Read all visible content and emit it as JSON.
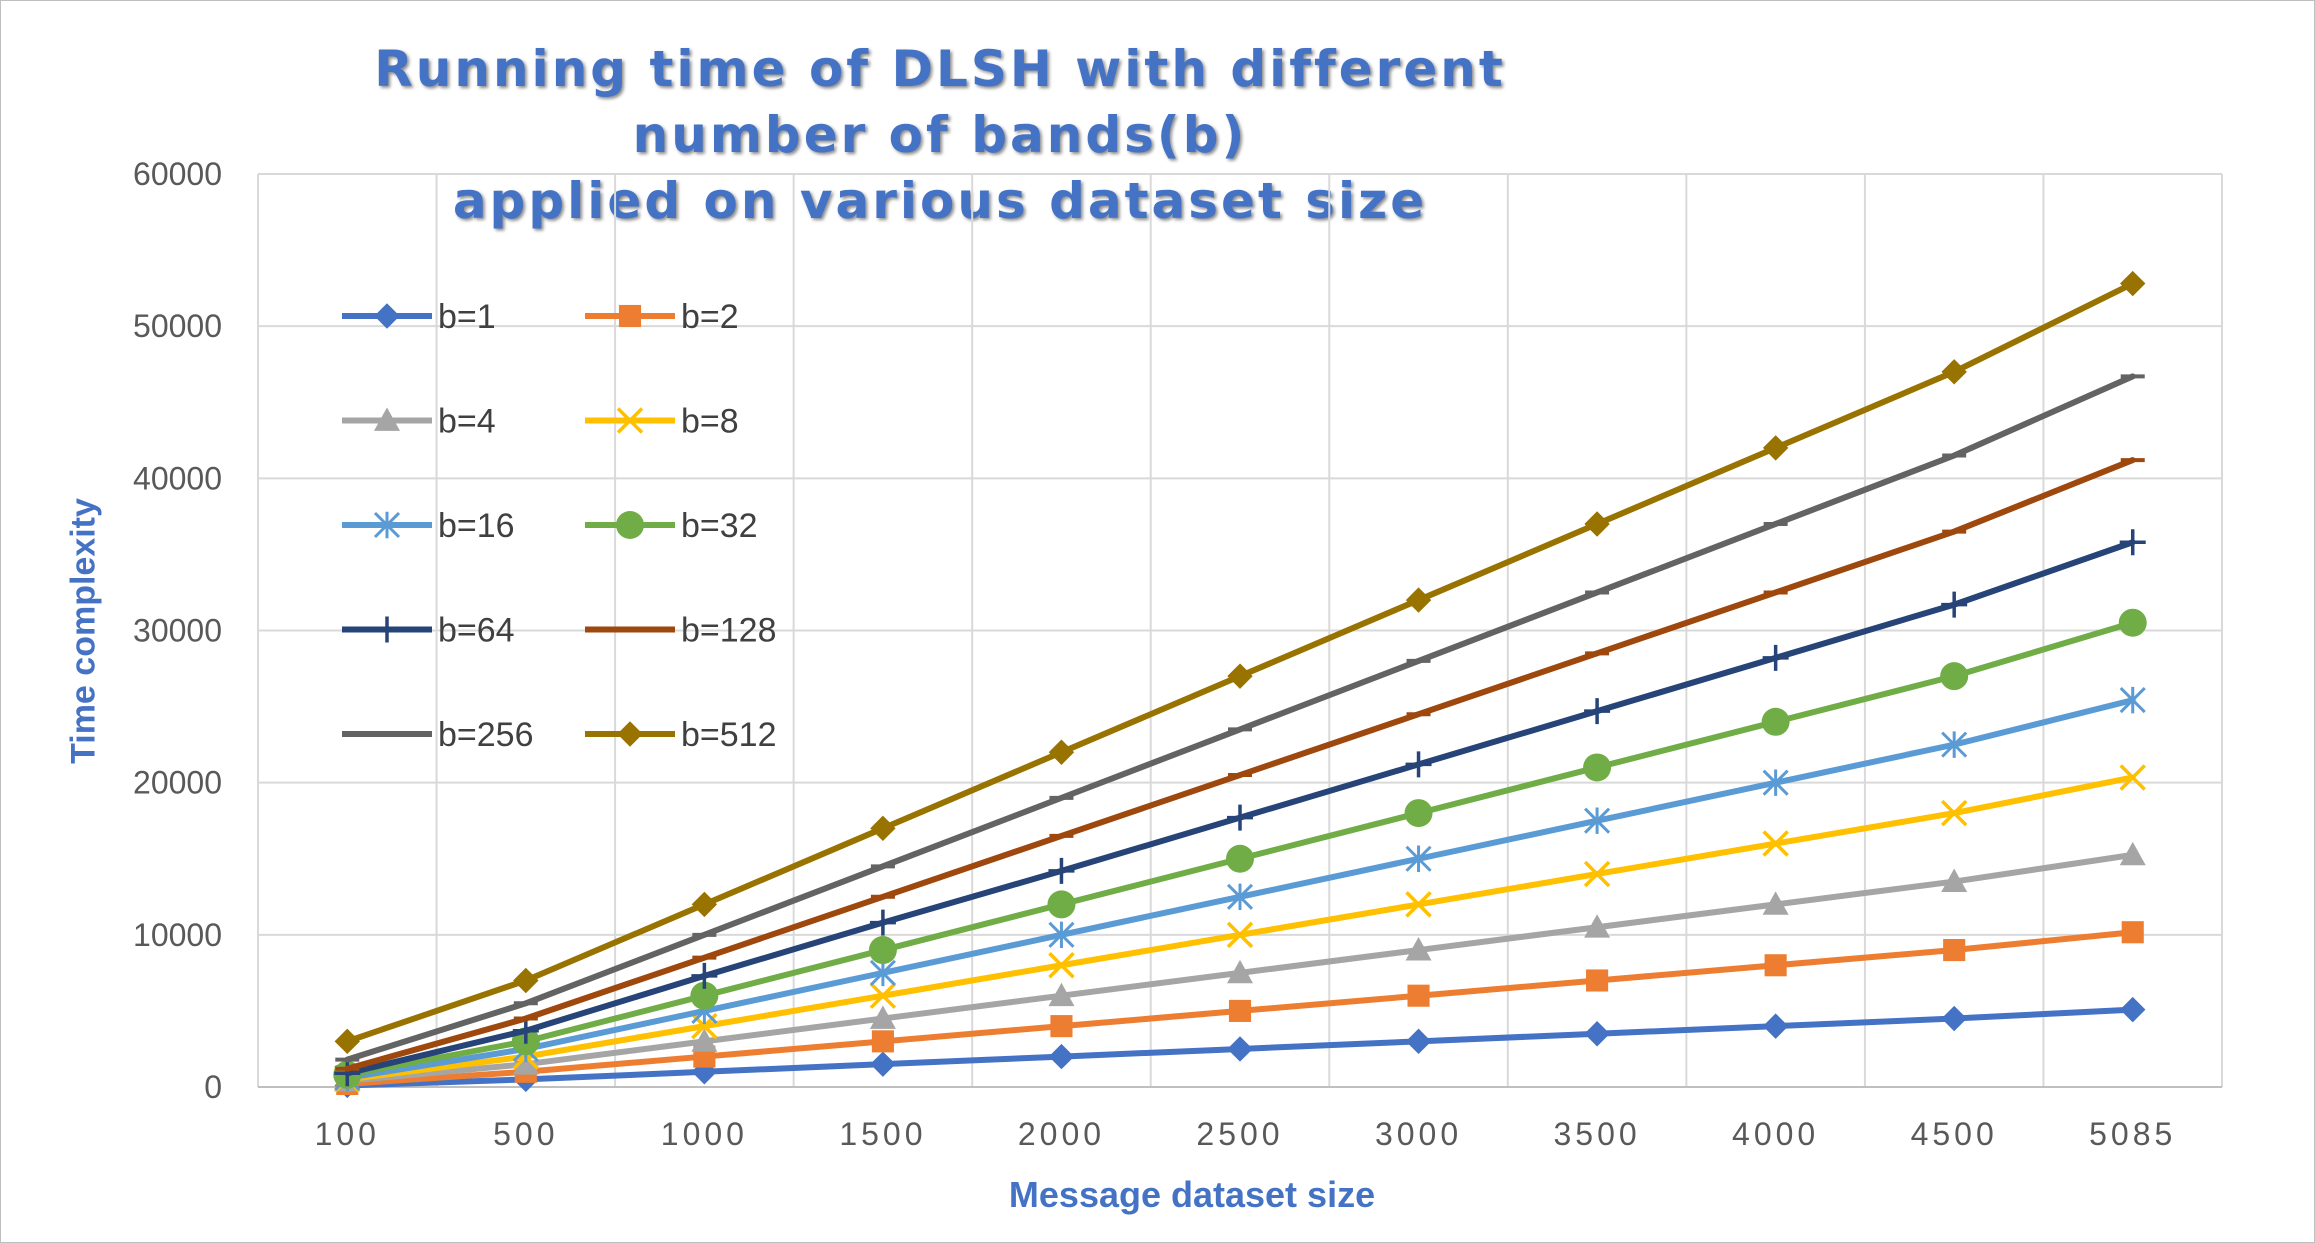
{
  "chart_data": {
    "type": "line",
    "title": "Running time of DLSH with different number of bands(b)\napplied on various  dataset size",
    "xlabel": "Message dataset size",
    "ylabel": "Time complexity",
    "categories": [
      "100",
      "500",
      "1000",
      "1500",
      "2000",
      "2500",
      "3000",
      "3500",
      "4000",
      "4500",
      "5085"
    ],
    "ylim": [
      0,
      60000
    ],
    "yticks": [
      "0",
      "10000",
      "20000",
      "30000",
      "40000",
      "50000",
      "60000"
    ],
    "grid": true,
    "legend_position": "upper-left inside plot",
    "series": [
      {
        "name": "b=1",
        "color": "#4472c4",
        "marker": "diamond",
        "values": [
          100,
          500,
          1000,
          1500,
          2000,
          2500,
          3000,
          3500,
          4000,
          4500,
          5085
        ]
      },
      {
        "name": "b=2",
        "color": "#ed7d31",
        "marker": "square",
        "values": [
          200,
          1000,
          2000,
          3000,
          4000,
          5000,
          6000,
          7000,
          8000,
          9000,
          10170
        ]
      },
      {
        "name": "b=4",
        "color": "#a5a5a5",
        "marker": "triangle",
        "values": [
          400,
          1500,
          3000,
          4500,
          6000,
          7500,
          9000,
          10500,
          12000,
          13500,
          15255
        ]
      },
      {
        "name": "b=8",
        "color": "#ffc000",
        "marker": "x",
        "values": [
          500,
          2000,
          4000,
          6000,
          8000,
          10000,
          12000,
          14000,
          16000,
          18000,
          20340
        ]
      },
      {
        "name": "b=16",
        "color": "#5b9bd5",
        "marker": "star",
        "values": [
          600,
          2500,
          5000,
          7500,
          10000,
          12500,
          15000,
          17500,
          20000,
          22500,
          25425
        ]
      },
      {
        "name": "b=32",
        "color": "#70ad47",
        "marker": "circle",
        "values": [
          800,
          3000,
          6000,
          9000,
          12000,
          15000,
          18000,
          21000,
          24000,
          27000,
          30510
        ]
      },
      {
        "name": "b=64",
        "color": "#264478",
        "marker": "plus",
        "values": [
          900,
          3700,
          7300,
          10800,
          14200,
          17700,
          21200,
          24700,
          28200,
          31700,
          35800
        ]
      },
      {
        "name": "b=128",
        "color": "#9e480e",
        "marker": "dash",
        "values": [
          1200,
          4500,
          8500,
          12500,
          16500,
          20500,
          24500,
          28500,
          32500,
          36500,
          41200
        ]
      },
      {
        "name": "b=256",
        "color": "#636363",
        "marker": "dash",
        "values": [
          1800,
          5500,
          10000,
          14500,
          19000,
          23500,
          28000,
          32500,
          37000,
          41500,
          46700
        ]
      },
      {
        "name": "b=512",
        "color": "#997300",
        "marker": "diamond",
        "values": [
          3000,
          7000,
          12000,
          17000,
          22000,
          27000,
          32000,
          37000,
          42000,
          47000,
          52800
        ]
      }
    ]
  }
}
